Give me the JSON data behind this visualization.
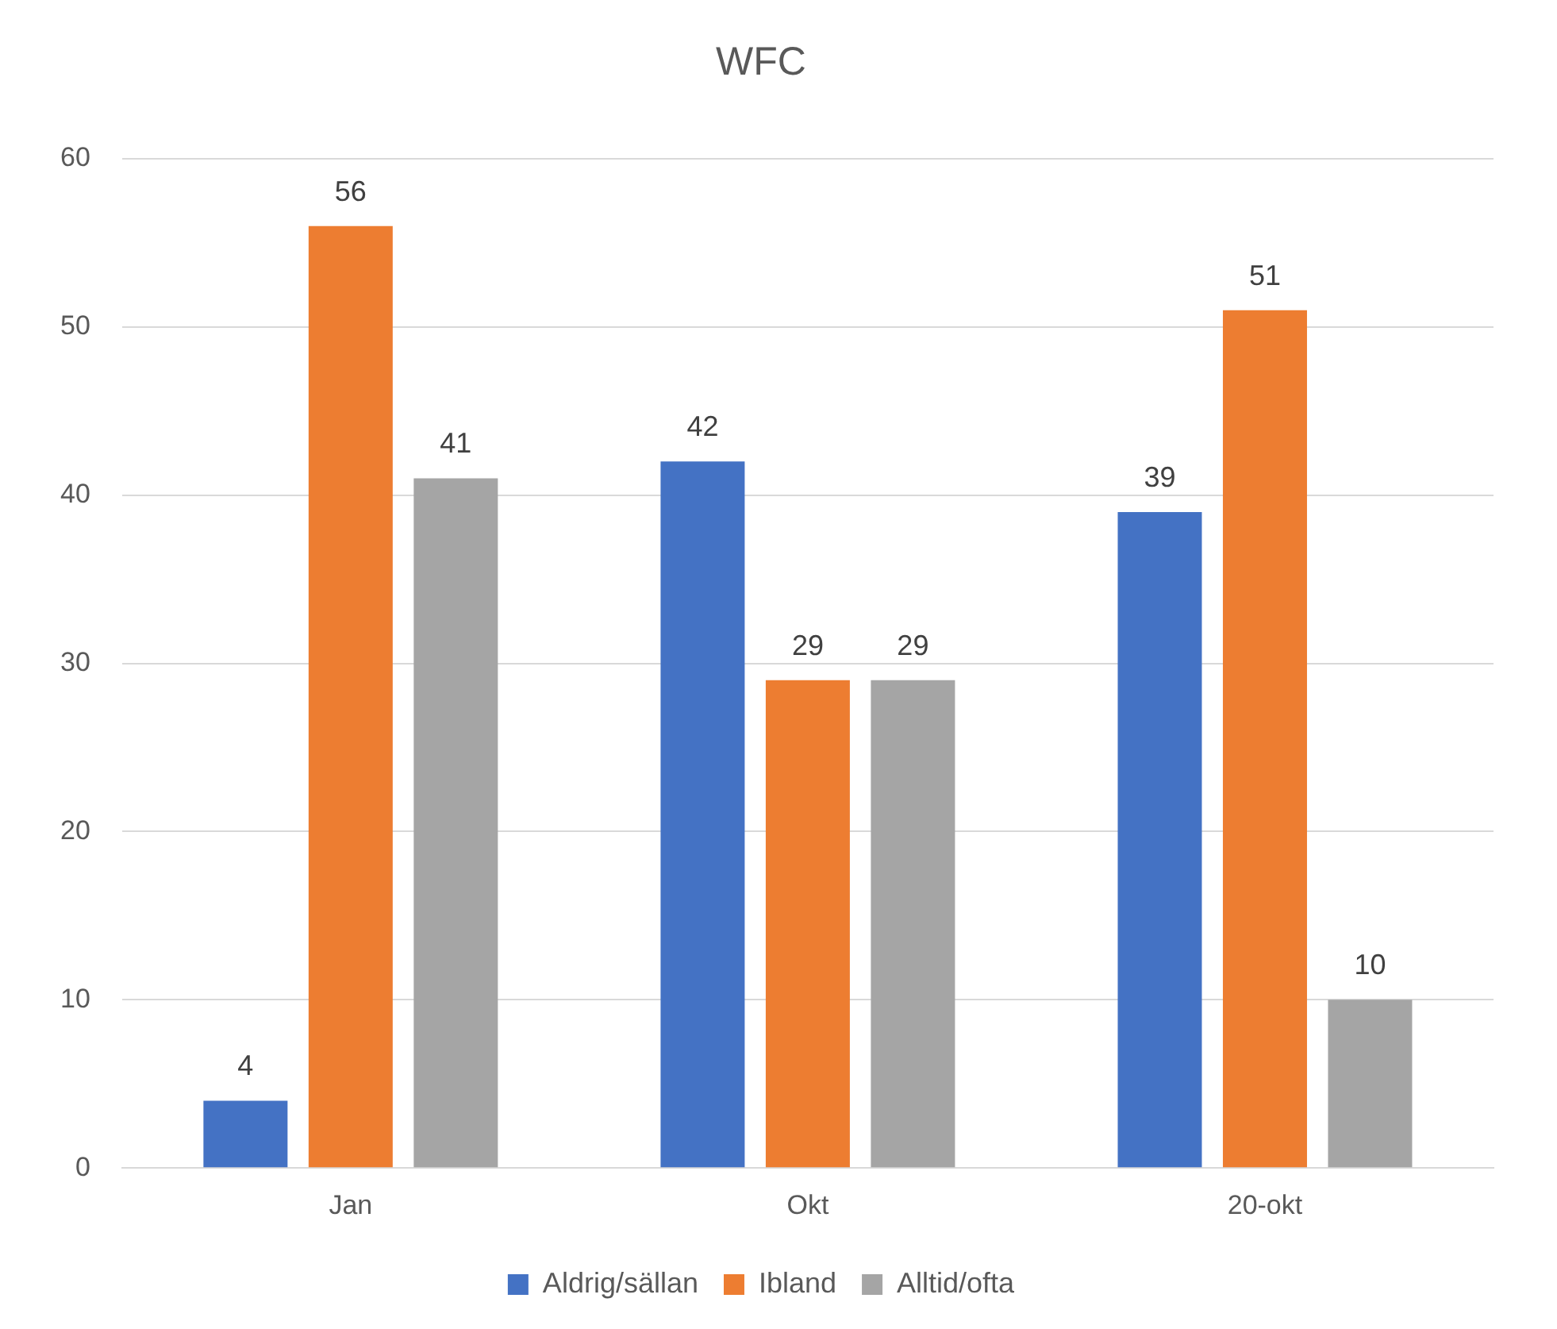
{
  "chart_data": {
    "type": "bar",
    "title": "WFC",
    "categories": [
      "Jan",
      "Okt",
      "20-okt"
    ],
    "series": [
      {
        "name": "Aldrig/sällan",
        "color": "#4472c4",
        "values": [
          4,
          42,
          39
        ]
      },
      {
        "name": "Ibland",
        "color": "#ed7d31",
        "values": [
          56,
          29,
          51
        ]
      },
      {
        "name": "Alltid/ofta",
        "color": "#a5a5a5",
        "values": [
          41,
          29,
          10
        ]
      }
    ],
    "ylim": [
      0,
      60
    ],
    "yticks": [
      0,
      10,
      20,
      30,
      40,
      50,
      60
    ],
    "grid": "y",
    "legend": "bottom",
    "data_labels": true
  }
}
